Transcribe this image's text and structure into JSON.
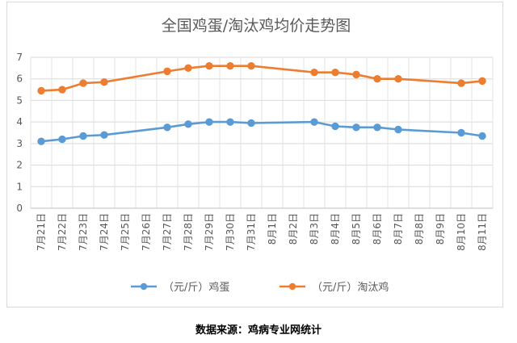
{
  "source_note": "数据来源：鸡病专业网统计",
  "chart_data": {
    "type": "line",
    "title": "全国鸡蛋/淘汰鸡均价走势图",
    "xlabel": "",
    "ylabel": "",
    "ylim": [
      0,
      7
    ],
    "yticks": [
      0,
      1,
      2,
      3,
      4,
      5,
      6,
      7
    ],
    "grid": true,
    "legend_position": "bottom",
    "categories": [
      "7月21日",
      "7月22日",
      "7月23日",
      "7月24日",
      "7月25日",
      "7月26日",
      "7月27日",
      "7月28日",
      "7月29日",
      "7月30日",
      "7月31日",
      "8月1日",
      "8月2日",
      "8月3日",
      "8月4日",
      "8月5日",
      "8月6日",
      "8月7日",
      "8月8日",
      "8月9日",
      "8月10日",
      "8月11日"
    ],
    "series": [
      {
        "name": "（元/斤）鸡蛋",
        "color": "#5B9BD5",
        "values": [
          3.1,
          3.2,
          3.35,
          3.4,
          null,
          null,
          3.75,
          3.9,
          4.0,
          4.0,
          3.95,
          null,
          null,
          4.0,
          3.8,
          3.75,
          3.75,
          3.65,
          null,
          null,
          3.5,
          3.35
        ]
      },
      {
        "name": "（元/斤）淘汰鸡",
        "color": "#ED7D31",
        "values": [
          5.45,
          5.5,
          5.8,
          5.85,
          null,
          null,
          6.35,
          6.5,
          6.6,
          6.6,
          6.6,
          null,
          null,
          6.3,
          6.3,
          6.2,
          6.0,
          6.0,
          null,
          null,
          5.8,
          5.9
        ]
      }
    ]
  }
}
